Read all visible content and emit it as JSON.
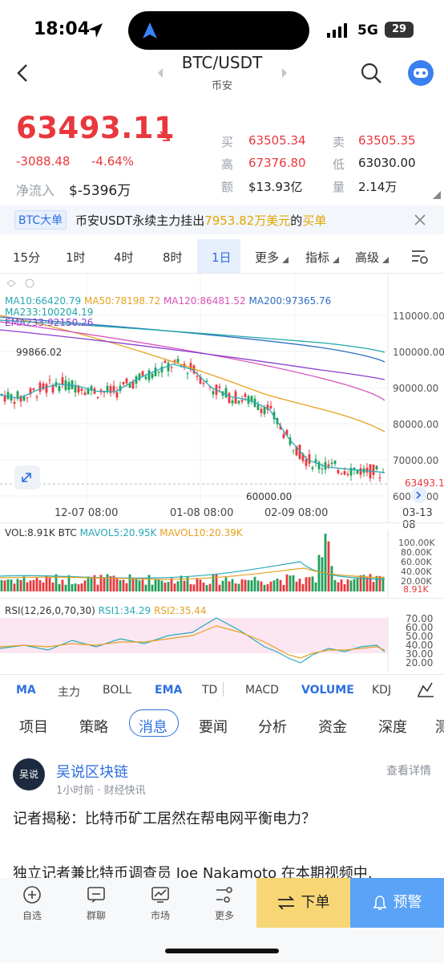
{
  "status_bar": {
    "time": "18:04",
    "network": "5G",
    "battery": "29"
  },
  "header": {
    "pair": "BTC/USDT",
    "exchange": "币安"
  },
  "quote": {
    "price": "63493.11",
    "change": "-3088.48",
    "change_pct": "-4.64%",
    "net_inflow_label": "净流入",
    "net_inflow": "$-5396万",
    "stats": [
      {
        "label": "买",
        "value": "63505.34"
      },
      {
        "label": "卖",
        "value": "63505.35"
      },
      {
        "label": "高",
        "value": "67376.80"
      },
      {
        "label": "低",
        "value": "63030.00"
      },
      {
        "label": "额",
        "value": "$13.93亿"
      },
      {
        "label": "量",
        "value": "2.14万"
      }
    ]
  },
  "banner": {
    "tag": "BTC大单",
    "text_pre": "币安USDT永续主力挂出",
    "amount": "7953.82万美元",
    "text_mid": "的",
    "action": "买单"
  },
  "timeframes": [
    "15分",
    "1时",
    "4时",
    "8时",
    "1日",
    "更多",
    "指标",
    "高级"
  ],
  "active_timeframe": "1日",
  "ma_legend": [
    {
      "label": "MA10:66420.79",
      "color": "#2aa9b7"
    },
    {
      "label": "MA50:78198.72",
      "color": "#e6a11f"
    },
    {
      "label": "MA120:86481.52",
      "color": "#d652b9"
    },
    {
      "label": "MA200:97365.76",
      "color": "#2d6fc4"
    },
    {
      "label": "MA233:100204.19",
      "color": "#1fa6a6"
    },
    {
      "label": "EMA233:92150.26",
      "color": "#8a3fd1"
    }
  ],
  "chart_data": {
    "type": "line",
    "title": "",
    "price_axis": [
      "110000.00",
      "100000.00",
      "90000.00",
      "80000.00",
      "70000.00",
      "60000.00"
    ],
    "last_price_tag": "63493.11",
    "high_label": "99866.02",
    "low_label": "60000.00",
    "x_ticks": [
      "12-07 08:00",
      "01-08 08:00",
      "02-09 08:00",
      "03-13 08"
    ],
    "ma10": [
      88000,
      87000,
      89500,
      91000,
      90500,
      89000,
      88800,
      92000,
      94500,
      96500,
      95000,
      90000,
      87500,
      86500,
      84000,
      76000,
      70000,
      68000,
      67500,
      67000,
      66500
    ]
  },
  "volume": {
    "legend": "VOL:8.91K BTC",
    "mavol5": "MAVOL5:20.95K",
    "mavol10": "MAVOL10:20.39K",
    "axis": [
      "100.00K",
      "80.00K",
      "60.00K",
      "40.00K",
      "20.00K"
    ],
    "current": "8.91K"
  },
  "rsi": {
    "legend": "RSI(12,26,0,70,30)",
    "rsi1": "RSI1:34.29",
    "rsi2": "RSI2:35.44",
    "axis": [
      "70.00",
      "60.00",
      "50.00",
      "40.00",
      "30.00",
      "20.00"
    ]
  },
  "indicators": [
    {
      "label": "MA",
      "active": true
    },
    {
      "label": "主力",
      "active": false
    },
    {
      "label": "BOLL",
      "active": false
    },
    {
      "label": "EMA",
      "active": true
    },
    {
      "label": "TD",
      "active": false
    },
    {
      "label": "MACD",
      "active": false
    },
    {
      "label": "VOLUME",
      "active": true
    },
    {
      "label": "KDJ",
      "active": false
    }
  ],
  "content_tabs": [
    "项目",
    "策略",
    "消息",
    "要闻",
    "分析",
    "资金",
    "深度",
    "测"
  ],
  "active_content_tab": "消息",
  "news": {
    "author": "吴说区块链",
    "avatar_text": "吴说",
    "meta": "1小时前 · 财经快讯",
    "detail": "查看详情",
    "title": "记者揭秘：比特币矿工居然在帮电网平衡电力？",
    "body": "独立记者兼比特币调查员 Joe Nakamoto 在本期视频中,"
  },
  "bottom_nav": [
    {
      "label": "自选",
      "icon": "plus-circle-icon"
    },
    {
      "label": "群聊",
      "icon": "chat-icon"
    },
    {
      "label": "市场",
      "icon": "market-icon"
    },
    {
      "label": "更多",
      "icon": "more-icon"
    }
  ],
  "actions": {
    "order": "下单",
    "alert": "预警"
  },
  "colors": {
    "up": "#e8383d",
    "down": "#20a05a",
    "accent": "#2d6fe0",
    "alert_button": "#5aa3f6",
    "order_button": "#f8d676"
  }
}
